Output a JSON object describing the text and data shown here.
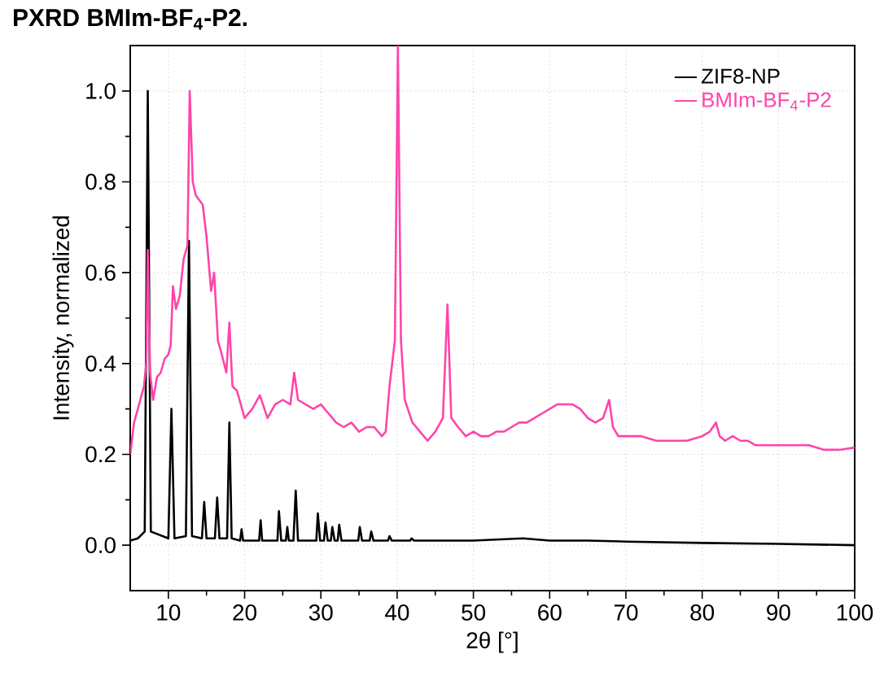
{
  "chart_data": {
    "type": "line",
    "title": "PXRD BMIm-BF$_{4}$-P2.",
    "xlabel": "2θ [°]",
    "ylabel": "Intensity, normalized",
    "xlim": [
      5,
      100
    ],
    "ylim": [
      -0.1,
      1.1
    ],
    "xticks": [
      10,
      20,
      30,
      40,
      50,
      60,
      70,
      80,
      90,
      100
    ],
    "yticks": [
      {
        "value": 0,
        "label": "0.0"
      },
      {
        "value": 0.2,
        "label": "0.2"
      },
      {
        "value": 0.4,
        "label": "0.4"
      },
      {
        "value": 0.6,
        "label": "0.6"
      },
      {
        "value": 0.8,
        "label": "0.8"
      },
      {
        "value": 1.0,
        "label": "1.0"
      }
    ],
    "grid": true,
    "legend": "top right",
    "marker": "none",
    "line_style": "solid",
    "series": [
      {
        "name": "ZIF8-NP",
        "color": "#000000",
        "x": [
          5,
          6,
          6.9,
          7.3,
          7.7,
          10.0,
          10.4,
          10.8,
          12.3,
          12.7,
          13.1,
          14.4,
          14.7,
          15.0,
          16.1,
          16.4,
          16.7,
          17.7,
          18.0,
          18.3,
          19.4,
          19.6,
          19.8,
          21.9,
          22.1,
          22.3,
          24.3,
          24.5,
          24.8,
          25.4,
          25.6,
          25.8,
          26.4,
          26.7,
          27.0,
          29.4,
          29.6,
          29.9,
          30.4,
          30.6,
          30.9,
          31.3,
          31.5,
          31.8,
          32.2,
          32.4,
          32.7,
          34.9,
          35.1,
          35.4,
          36.4,
          36.6,
          36.9,
          38.8,
          39.0,
          39.3,
          41.7,
          41.9,
          42.2,
          45,
          50,
          56.5,
          60,
          65,
          70,
          80,
          90,
          100
        ],
        "values": [
          0.01,
          0.015,
          0.03,
          1.0,
          0.03,
          0.015,
          0.3,
          0.015,
          0.02,
          0.67,
          0.02,
          0.015,
          0.095,
          0.015,
          0.015,
          0.105,
          0.015,
          0.015,
          0.27,
          0.015,
          0.01,
          0.035,
          0.01,
          0.01,
          0.055,
          0.01,
          0.01,
          0.075,
          0.01,
          0.01,
          0.04,
          0.01,
          0.01,
          0.12,
          0.01,
          0.01,
          0.07,
          0.01,
          0.01,
          0.05,
          0.01,
          0.01,
          0.04,
          0.01,
          0.01,
          0.045,
          0.01,
          0.01,
          0.04,
          0.01,
          0.01,
          0.03,
          0.01,
          0.01,
          0.02,
          0.01,
          0.01,
          0.015,
          0.01,
          0.01,
          0.01,
          0.015,
          0.01,
          0.01,
          0.008,
          0.005,
          0.003,
          0.0
        ]
      },
      {
        "name": "BMIm-BF$_{4}$-P2",
        "color": "#ff44aa",
        "x": [
          5,
          5.5,
          6,
          6.8,
          7.1,
          7.3,
          7.6,
          8,
          8.5,
          9,
          9.5,
          10,
          10.3,
          10.6,
          11,
          11.5,
          12,
          12.5,
          12.8,
          13.2,
          13.6,
          14.5,
          15,
          15.6,
          16,
          16.5,
          17,
          17.6,
          18,
          18.4,
          19,
          20,
          21,
          22,
          23,
          24,
          25,
          26,
          26.5,
          27,
          28,
          29,
          30,
          31,
          32,
          33,
          34,
          35,
          36,
          37,
          38,
          38.5,
          39,
          39.7,
          40.1,
          40.5,
          41,
          42,
          43,
          44,
          45,
          46,
          46.6,
          47.1,
          48,
          49,
          50,
          51,
          52,
          53,
          54,
          55,
          56,
          57,
          58,
          59,
          60,
          61,
          62,
          63,
          64,
          65,
          66,
          67,
          67.8,
          68.3,
          69,
          70,
          72,
          74,
          76,
          78,
          80,
          81,
          81.8,
          82.3,
          83,
          84,
          85,
          86,
          87,
          88,
          90,
          92,
          94,
          96,
          98,
          100
        ],
        "values": [
          0.2,
          0.27,
          0.3,
          0.35,
          0.4,
          0.65,
          0.38,
          0.32,
          0.37,
          0.38,
          0.41,
          0.42,
          0.44,
          0.57,
          0.52,
          0.55,
          0.63,
          0.66,
          1.0,
          0.8,
          0.77,
          0.75,
          0.68,
          0.56,
          0.6,
          0.45,
          0.42,
          0.38,
          0.49,
          0.35,
          0.34,
          0.28,
          0.3,
          0.33,
          0.28,
          0.31,
          0.32,
          0.31,
          0.38,
          0.32,
          0.31,
          0.3,
          0.31,
          0.29,
          0.27,
          0.26,
          0.27,
          0.25,
          0.26,
          0.26,
          0.24,
          0.25,
          0.35,
          0.45,
          1.1,
          0.45,
          0.32,
          0.27,
          0.25,
          0.23,
          0.25,
          0.28,
          0.53,
          0.28,
          0.26,
          0.24,
          0.25,
          0.24,
          0.24,
          0.25,
          0.25,
          0.26,
          0.27,
          0.27,
          0.28,
          0.29,
          0.3,
          0.31,
          0.31,
          0.31,
          0.3,
          0.28,
          0.27,
          0.28,
          0.32,
          0.26,
          0.24,
          0.24,
          0.24,
          0.23,
          0.23,
          0.23,
          0.24,
          0.25,
          0.27,
          0.24,
          0.23,
          0.24,
          0.23,
          0.23,
          0.22,
          0.22,
          0.22,
          0.22,
          0.22,
          0.21,
          0.21,
          0.215
        ]
      }
    ]
  }
}
